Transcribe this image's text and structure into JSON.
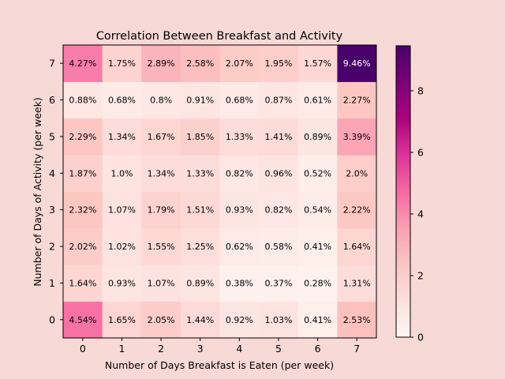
{
  "chart_data": {
    "type": "heatmap",
    "title": "Correlation Between Breakfast and Activity",
    "xlabel": "Number of Days Breakfast is Eaten (per week)",
    "ylabel": "Number of Days of Activity (per week)",
    "x_categories": [
      "0",
      "1",
      "2",
      "3",
      "4",
      "5",
      "6",
      "7"
    ],
    "y_categories": [
      "0",
      "1",
      "2",
      "3",
      "4",
      "5",
      "6",
      "7"
    ],
    "values": [
      [
        4.54,
        1.65,
        2.05,
        1.44,
        0.92,
        1.03,
        0.41,
        2.53
      ],
      [
        1.64,
        0.93,
        1.07,
        0.89,
        0.38,
        0.37,
        0.28,
        1.31
      ],
      [
        2.02,
        1.02,
        1.55,
        1.25,
        0.62,
        0.58,
        0.41,
        1.64
      ],
      [
        2.32,
        1.07,
        1.79,
        1.51,
        0.93,
        0.82,
        0.54,
        2.22
      ],
      [
        1.87,
        1.0,
        1.34,
        1.33,
        0.82,
        0.96,
        0.52,
        2.0
      ],
      [
        2.29,
        1.34,
        1.67,
        1.85,
        1.33,
        1.41,
        0.89,
        3.39
      ],
      [
        0.88,
        0.68,
        0.8,
        0.91,
        0.68,
        0.87,
        0.61,
        2.27
      ],
      [
        4.27,
        1.75,
        2.89,
        2.58,
        2.07,
        1.95,
        1.57,
        9.46
      ]
    ],
    "cell_labels": [
      [
        "4.54%",
        "1.65%",
        "2.05%",
        "1.44%",
        "0.92%",
        "1.03%",
        "0.41%",
        "2.53%"
      ],
      [
        "1.64%",
        "0.93%",
        "1.07%",
        "0.89%",
        "0.38%",
        "0.37%",
        "0.28%",
        "1.31%"
      ],
      [
        "2.02%",
        "1.02%",
        "1.55%",
        "1.25%",
        "0.62%",
        "0.58%",
        "0.41%",
        "1.64%"
      ],
      [
        "2.32%",
        "1.07%",
        "1.79%",
        "1.51%",
        "0.93%",
        "0.82%",
        "0.54%",
        "2.22%"
      ],
      [
        "1.87%",
        "1.0%",
        "1.34%",
        "1.33%",
        "0.82%",
        "0.96%",
        "0.52%",
        "2.0%"
      ],
      [
        "2.29%",
        "1.34%",
        "1.67%",
        "1.85%",
        "1.33%",
        "1.41%",
        "0.89%",
        "3.39%"
      ],
      [
        "0.88%",
        "0.68%",
        "0.8%",
        "0.91%",
        "0.68%",
        "0.87%",
        "0.61%",
        "2.27%"
      ],
      [
        "4.27%",
        "1.75%",
        "2.89%",
        "2.58%",
        "2.07%",
        "1.95%",
        "1.57%",
        "9.46%"
      ]
    ],
    "colormap": "RdPu",
    "colorbar": {
      "range": [
        0,
        9.46
      ],
      "ticks": [
        0,
        2,
        4,
        6,
        8
      ]
    },
    "grid": false,
    "colors": {
      "background": "#f7d9d6",
      "cell_text_dark": "#000000",
      "cell_text_light": "#ffffff"
    }
  }
}
